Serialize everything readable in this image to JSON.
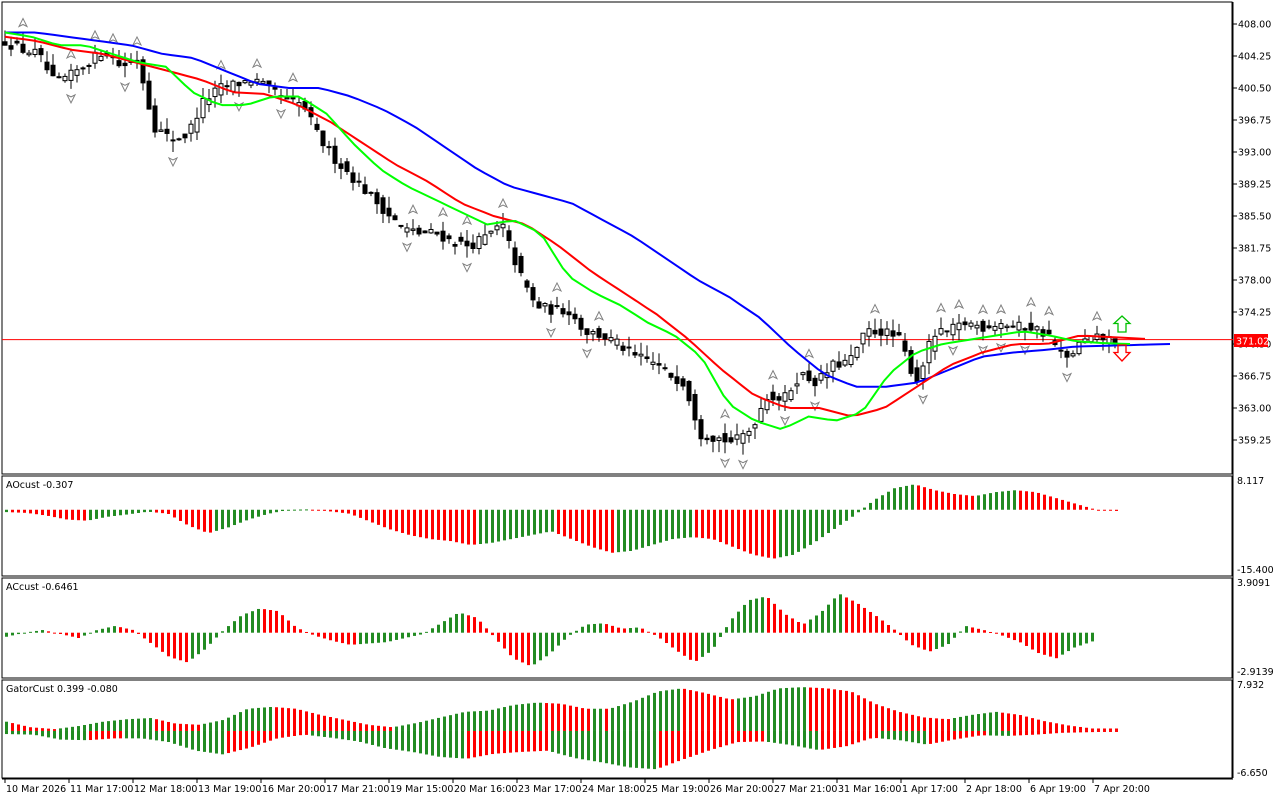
{
  "colors": {
    "up": "#228B22",
    "down": "#FF0000",
    "alligator_jaw": "#0000FF",
    "alligator_teeth": "#FF0000",
    "alligator_lips": "#00FF00",
    "current_price_line": "#FF0000",
    "fractal": "#808080",
    "signal_up": "#00C000",
    "signal_down": "#FF0000"
  },
  "main": {
    "y_ticks": [
      "408.00",
      "404.25",
      "400.50",
      "396.75",
      "393.00",
      "389.25",
      "385.50",
      "381.75",
      "378.00",
      "374.25",
      "370.50",
      "366.75",
      "363.00",
      "359.25"
    ],
    "current_price": "371.02"
  },
  "ao": {
    "label": "AOcust -0.307",
    "y_max": "8.117",
    "y_min": "-15.400"
  },
  "ac": {
    "label": "ACcust -0.6461",
    "y_max": "3.9091",
    "y_min": "-2.9139"
  },
  "gator": {
    "label": "GatorCust 0.399 -0.080",
    "y_max": "7.932",
    "y_min": "-6.650"
  },
  "x_labels": [
    "10 Mar 2026",
    "11 Mar 17:00",
    "12 Mar 18:00",
    "13 Mar 19:00",
    "16 Mar 20:00",
    "17 Mar 21:00",
    "19 Mar 15:00",
    "20 Mar 16:00",
    "23 Mar 17:00",
    "24 Mar 18:00",
    "25 Mar 19:00",
    "26 Mar 20:00",
    "27 Mar 21:00",
    "31 Mar 16:00",
    "1 Apr 17:00",
    "2 Apr 18:00",
    "6 Apr 19:00",
    "7 Apr 20:00"
  ],
  "chart_data": [
    {
      "type": "candlestick",
      "title": "",
      "ylim": [
        357,
        410
      ],
      "current_price": 371.02,
      "close_anchors": [
        406,
        405,
        404.5,
        401,
        402,
        403.5,
        405,
        403,
        404,
        396,
        394.5,
        395,
        399,
        400.5,
        401,
        401.5,
        400.3,
        399,
        398.5,
        394.5,
        392,
        390,
        388,
        386,
        384,
        383.5,
        383.5,
        382.5,
        382,
        383,
        384.5,
        379,
        375,
        374.5,
        374.5,
        372,
        371.5,
        370.5,
        369,
        368.5,
        367,
        366,
        360,
        359.5,
        359,
        360.5,
        364.5,
        364,
        367,
        366,
        368,
        368.5,
        372,
        372,
        371,
        366,
        371.5,
        372,
        373,
        372.5,
        373,
        372.5,
        372.5,
        371.5,
        368.5,
        370.8,
        371.2,
        371.02
      ],
      "alligator_jaw_anchors": [
        407,
        407,
        406.5,
        406,
        405.5,
        404.5,
        404,
        402.5,
        401,
        400.5,
        400.5,
        399.5,
        398,
        396,
        393.5,
        391,
        389,
        388,
        387,
        385,
        383,
        380.5,
        378,
        376,
        373.5,
        370,
        367,
        365.5,
        365.5,
        366,
        367.5,
        369,
        369.5,
        369.8,
        370.2,
        370.3,
        370.4,
        370.5
      ],
      "alligator_teeth_anchors": [
        406.5,
        406,
        405,
        404.5,
        403.5,
        402.5,
        401.5,
        400,
        399.8,
        398.5,
        396.5,
        394,
        391.5,
        389.5,
        387,
        385.5,
        384.5,
        382,
        379,
        376.5,
        374,
        371,
        367.5,
        364.5,
        363,
        363,
        362,
        363,
        365.5,
        368,
        369.5,
        370.5,
        370.5,
        371.5,
        371.3,
        371.1
      ],
      "alligator_lips_anchors": [
        407,
        406.5,
        405.5,
        405.5,
        404.5,
        403.5,
        403,
        400,
        398.5,
        398.5,
        399.5,
        399.5,
        397.5,
        394,
        391,
        389,
        387.5,
        386,
        384.5,
        385,
        383.5,
        378.5,
        376.5,
        375,
        373,
        371.5,
        369,
        363.5,
        361.5,
        360.5,
        362,
        361.5,
        362.5,
        367,
        369.5,
        370.5,
        371,
        371.5,
        372,
        371.5,
        370.8,
        370.6,
        370.5
      ]
    },
    {
      "type": "bar",
      "name": "AOcust",
      "ylim": [
        -15.4,
        8.117
      ],
      "last_value": -0.307,
      "anchors": [
        -0.6,
        -0.8,
        -1.5,
        -2.5,
        -2.8,
        -1.8,
        -1.2,
        -0.5,
        -1,
        -4,
        -6,
        -4.5,
        -2.5,
        -1,
        0,
        0.1,
        -0.4,
        -1,
        -3,
        -5,
        -6.5,
        -7.5,
        -8,
        -9,
        -8.5,
        -7.5,
        -6.5,
        -5.5,
        -7.5,
        -9.5,
        -11,
        -10.5,
        -9,
        -7.5,
        -7,
        -7.5,
        -9.5,
        -11.5,
        -12.5,
        -11.5,
        -8.5,
        -5,
        -1.5,
        2.5,
        5.5,
        6.5,
        5,
        4,
        3.5,
        4.5,
        5,
        4.5,
        3,
        1.5,
        0,
        -0.307
      ]
    },
    {
      "type": "bar",
      "name": "ACcust",
      "ylim": [
        -2.9139,
        3.9091
      ],
      "last_value": -0.6461,
      "anchors": [
        -0.3,
        0,
        0.2,
        -0.1,
        -0.4,
        0.2,
        0.5,
        0.2,
        -0.8,
        -1.8,
        -2.2,
        -1.2,
        0.2,
        1.3,
        1.8,
        1.6,
        0.4,
        -0.2,
        -0.6,
        -0.9,
        -0.8,
        -0.7,
        -0.4,
        -0.1,
        0.7,
        1.5,
        1.1,
        -0.4,
        -1.9,
        -2.5,
        -1.6,
        -0.3,
        0.6,
        0.7,
        0.3,
        0.4,
        -0.3,
        -1.3,
        -2.2,
        -1.3,
        0.9,
        2.4,
        2.7,
        1.4,
        0.6,
        1.5,
        2.9,
        2.2,
        1.3,
        0.3,
        -0.9,
        -1.4,
        -0.9,
        0.5,
        0.2,
        -0.2,
        -0.7,
        -1.5,
        -1.9,
        -1.1,
        -0.6461
      ]
    },
    {
      "type": "bar",
      "name": "GatorCust",
      "ylim": [
        -6.65,
        7.932
      ],
      "last_values": [
        0.399,
        -0.08
      ],
      "upper_anchors": [
        1.5,
        0.6,
        0.3,
        0.8,
        1.5,
        1.9,
        2.1,
        1.2,
        1,
        1.8,
        3.6,
        3.9,
        3.6,
        2.6,
        1.8,
        1,
        0.6,
        1.3,
        2.2,
        3.1,
        3.3,
        4.2,
        4.6,
        4.4,
        3.6,
        3.6,
        4.8,
        6.4,
        6.9,
        6.1,
        5.1,
        5.6,
        6.9,
        7.1,
        6.9,
        6.4,
        4.4,
        3.1,
        2.2,
        1.9,
        2.6,
        3.1,
        2.6,
        1.6,
        0.9,
        0.4,
        0.399
      ],
      "lower_anchors": [
        -0.5,
        -0.6,
        -1.4,
        -1.5,
        -1.2,
        -1.2,
        -1.8,
        -3.2,
        -3.8,
        -2.7,
        -1.2,
        -0.6,
        -1.1,
        -1.7,
        -2.8,
        -3.4,
        -4.2,
        -4.5,
        -3.7,
        -3.4,
        -3.2,
        -4.4,
        -5.1,
        -5.9,
        -6.2,
        -4.6,
        -3.1,
        -1.8,
        -1.7,
        -2.3,
        -3.1,
        -2.5,
        -1.1,
        -1.5,
        -2.2,
        -1.4,
        -0.7,
        -0.8,
        -0.6,
        -0.3,
        -0.2,
        -0.08
      ]
    }
  ]
}
